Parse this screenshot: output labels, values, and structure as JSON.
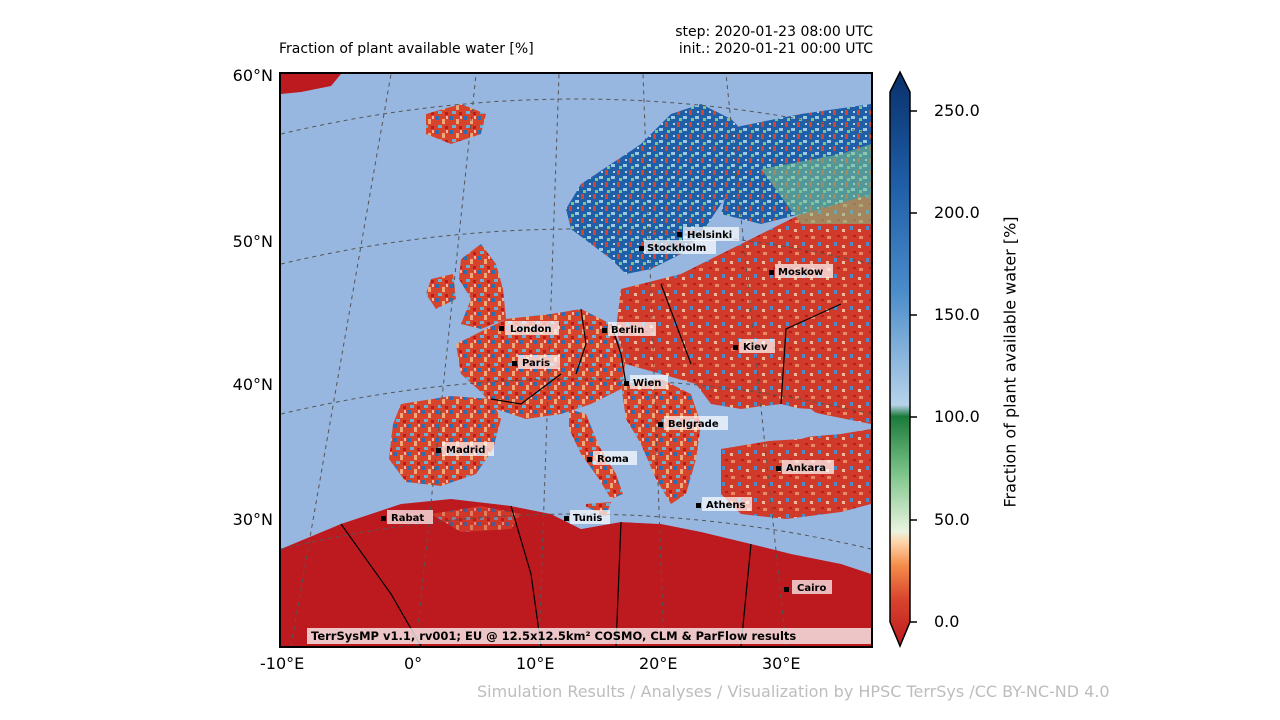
{
  "header": {
    "title": "Fraction of plant available water [%]",
    "step": "step: 2020-01-23 08:00 UTC",
    "init": "init.: 2020-01-21 00:00 UTC"
  },
  "map": {
    "lat_labels": [
      "60°N",
      "50°N",
      "40°N",
      "30°N"
    ],
    "lon_labels": [
      "-10°E",
      "0°",
      "10°E",
      "20°E",
      "30°E"
    ],
    "cities": [
      "Helsinki",
      "Stockholm",
      "Moskow",
      "London",
      "Berlin",
      "Paris",
      "Kiev",
      "Wien",
      "Belgrade",
      "Madrid",
      "Roma",
      "Ankara",
      "Athens",
      "Rabat",
      "Tunis",
      "Cairo"
    ],
    "footer_note": "TerrSysMP v1.1, rv001; EU @ 12.5x12.5km² COSMO, CLM & ParFlow results",
    "colors": {
      "sea": "#97b6e0",
      "land_dry": "#bd1a1f",
      "land_mid": "#e86c43",
      "land_wet": "#2c6fb0",
      "land_green": "#7dc58a"
    }
  },
  "colorbar": {
    "label": "Fraction of plant available water [%]",
    "ticks": [
      "250.0",
      "200.0",
      "150.0",
      "100.0",
      "50.0",
      "0.0"
    ]
  },
  "credit": "Simulation Results / Analyses / Visualization by HPSC TerrSys /CC BY-NC-ND 4.0"
}
